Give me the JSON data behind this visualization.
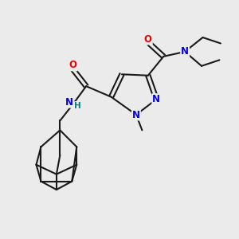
{
  "bg_color": "#ebebeb",
  "bond_color": "#1a1a1a",
  "bond_width": 1.5,
  "N_color": "#0000ee",
  "O_color": "#ee0000",
  "H_color": "#008080",
  "font_size_atom": 8.5,
  "fig_size": [
    3.0,
    3.0
  ],
  "dpi": 100,
  "xlim": [
    0,
    10
  ],
  "ylim": [
    0,
    10
  ]
}
